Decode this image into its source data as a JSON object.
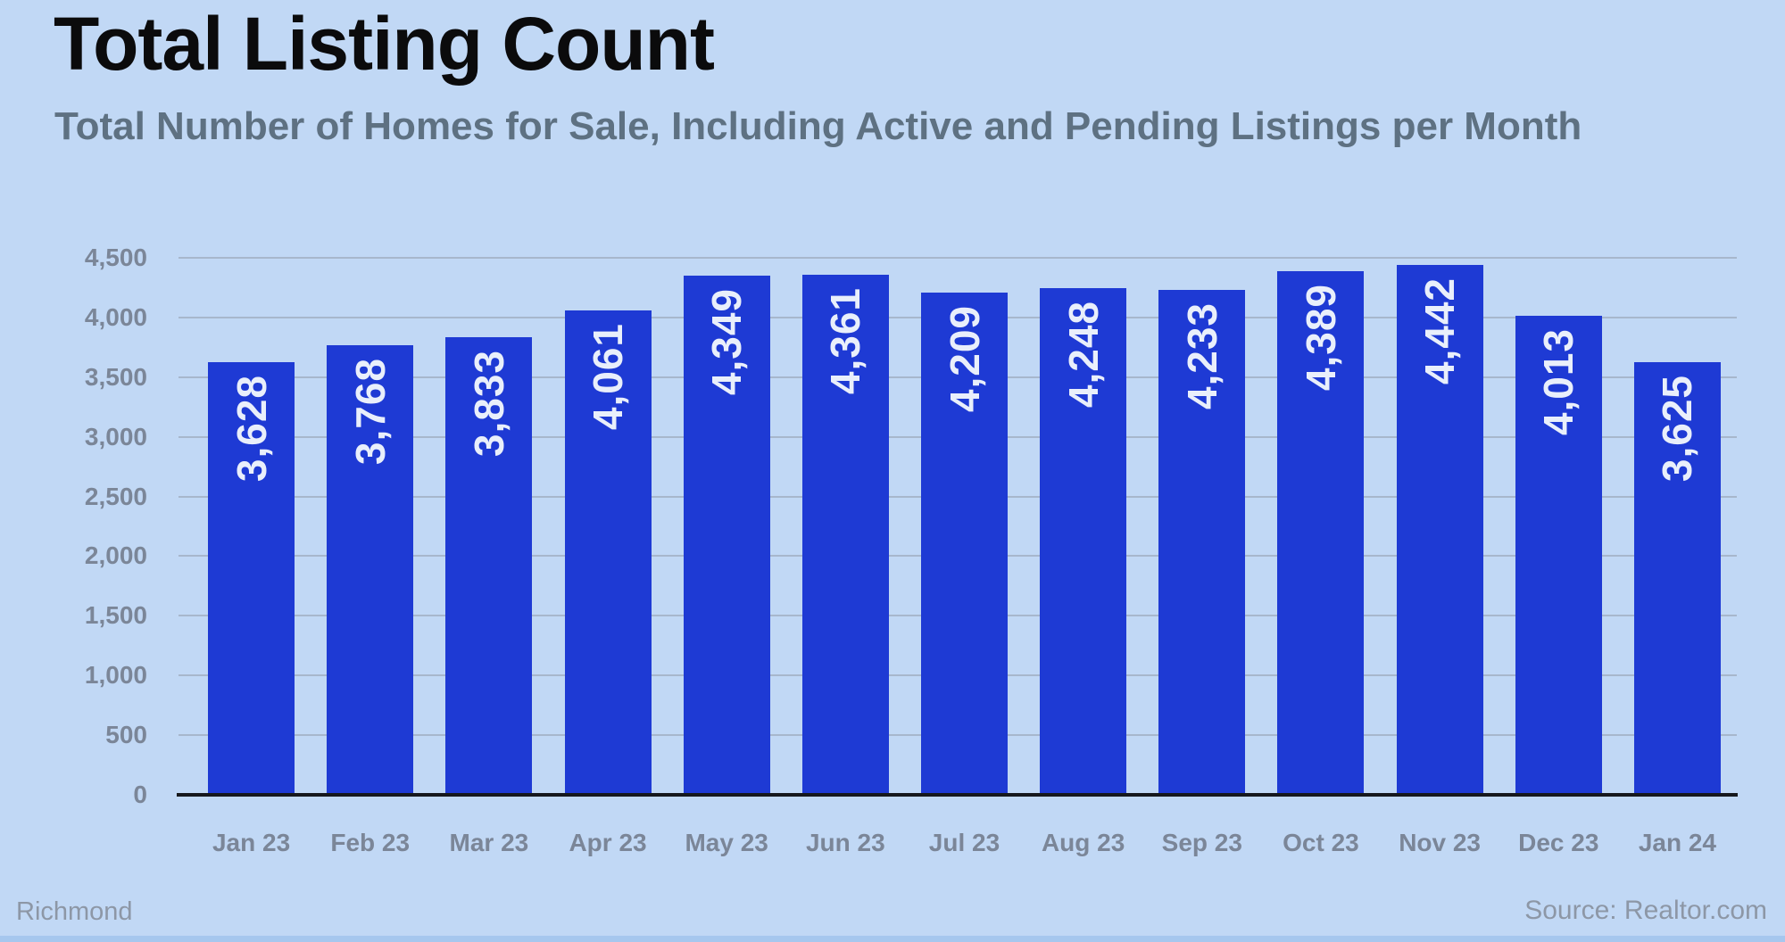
{
  "header": {
    "title": "Total Listing Count",
    "subtitle": "Total Number of Homes for Sale, Including Active and Pending Listings per Month"
  },
  "footer": {
    "left": "Richmond",
    "right": "Source: Realtor.com"
  },
  "colors": {
    "background": "#c1d8f5",
    "bar": "#1e3ad4",
    "grid": "#a7b7cc",
    "axis": "#16181d",
    "tick_label": "#7b8698",
    "title": "#0b0b0c",
    "subtitle": "#5e7182",
    "footer": "#8d97a6",
    "bar_label": "#e9effb",
    "bottom_strip": "#a6c7ee"
  },
  "chart_data": {
    "type": "bar",
    "title": "Total Listing Count",
    "subtitle": "Total Number of Homes for Sale, Including Active and Pending Listings per Month",
    "categories": [
      "Jan 23",
      "Feb 23",
      "Mar 23",
      "Apr 23",
      "May 23",
      "Jun 23",
      "Jul 23",
      "Aug 23",
      "Sep 23",
      "Oct 23",
      "Nov 23",
      "Dec 23",
      "Jan 24"
    ],
    "values": [
      3628,
      3768,
      3833,
      4061,
      4349,
      4361,
      4209,
      4248,
      4233,
      4389,
      4442,
      4013,
      3625
    ],
    "value_labels": [
      "3,628",
      "3,768",
      "3,833",
      "4,061",
      "4,349",
      "4,361",
      "4,209",
      "4,248",
      "4,233",
      "4,389",
      "4,442",
      "4,013",
      "3,625"
    ],
    "xlabel": "",
    "ylabel": "",
    "ylim": [
      0,
      4500
    ],
    "ytick_step": 500,
    "ytick_labels": [
      "0",
      "500",
      "1,000",
      "1,500",
      "2,000",
      "2,500",
      "3,000",
      "3,500",
      "4,000",
      "4,500"
    ],
    "grid": true,
    "legend_position": "none",
    "bar_value_label_rotation": "90-ccw"
  }
}
